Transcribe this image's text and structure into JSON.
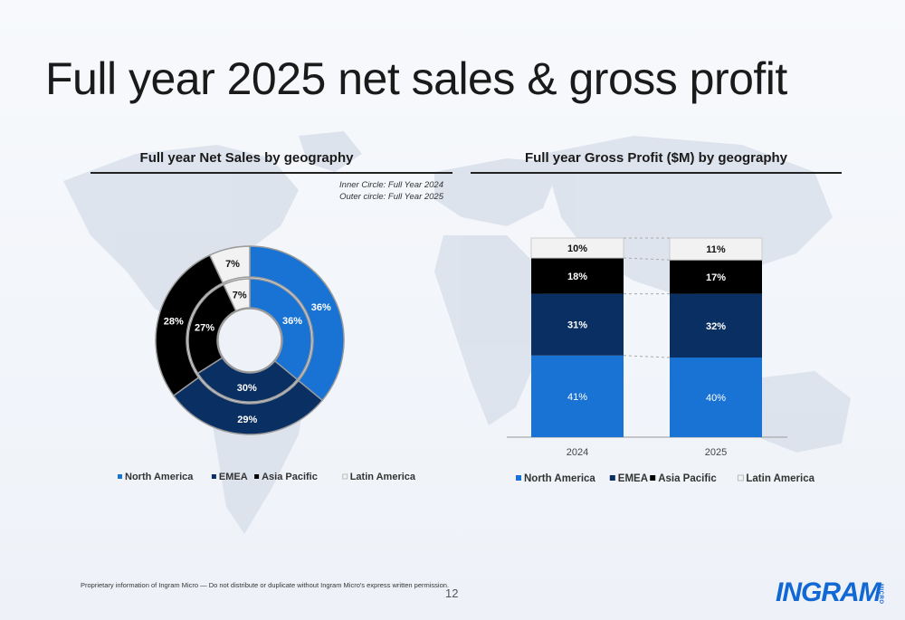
{
  "slide": {
    "title": "Full year 2025 net sales & gross profit",
    "footer": "Proprietary information of Ingram Micro — Do not distribute or duplicate without Ingram Micro's express written permission.",
    "page_number": "12",
    "logo_text": "INGRAM",
    "logo_sub": "MICRO"
  },
  "colors": {
    "north_america": "#1973d4",
    "emea": "#0a2f62",
    "asia_pacific": "#000000",
    "latin_america": "#f2f2f2"
  },
  "chart_data": [
    {
      "type": "pie",
      "subtype": "donut-nested",
      "title": "Full year Net Sales by geography",
      "notes": [
        "Inner Circle: Full Year 2024",
        "Outer circle: Full Year 2025"
      ],
      "categories": [
        "North America",
        "EMEA",
        "Asia Pacific",
        "Latin America"
      ],
      "series": [
        {
          "name": "Full Year 2024",
          "ring": "inner",
          "values": [
            36,
            30,
            27,
            7
          ],
          "labels": [
            "36%",
            "30%",
            "27%",
            "7%"
          ]
        },
        {
          "name": "Full Year 2025",
          "ring": "outer",
          "values": [
            36,
            29,
            28,
            7
          ],
          "labels": [
            "36%",
            "29%",
            "28%",
            "7%"
          ]
        }
      ],
      "legend": [
        "North America",
        "EMEA",
        "Asia Pacific",
        "Latin America"
      ],
      "legend_position": "bottom"
    },
    {
      "type": "bar",
      "subtype": "stacked-100",
      "title": "Full year Gross Profit ($M) by geography",
      "categories": [
        "2024",
        "2025"
      ],
      "series": [
        {
          "name": "North America",
          "values": [
            41,
            40
          ],
          "labels": [
            "41%",
            "40%"
          ]
        },
        {
          "name": "EMEA",
          "values": [
            31,
            32
          ],
          "labels": [
            "31%",
            "32%"
          ]
        },
        {
          "name": "Asia Pacific",
          "values": [
            18,
            17
          ],
          "labels": [
            "18%",
            "17%"
          ]
        },
        {
          "name": "Latin America",
          "values": [
            10,
            11
          ],
          "labels": [
            "10%",
            "11%"
          ]
        }
      ],
      "ylim": [
        0,
        100
      ],
      "legend_position": "bottom"
    }
  ]
}
